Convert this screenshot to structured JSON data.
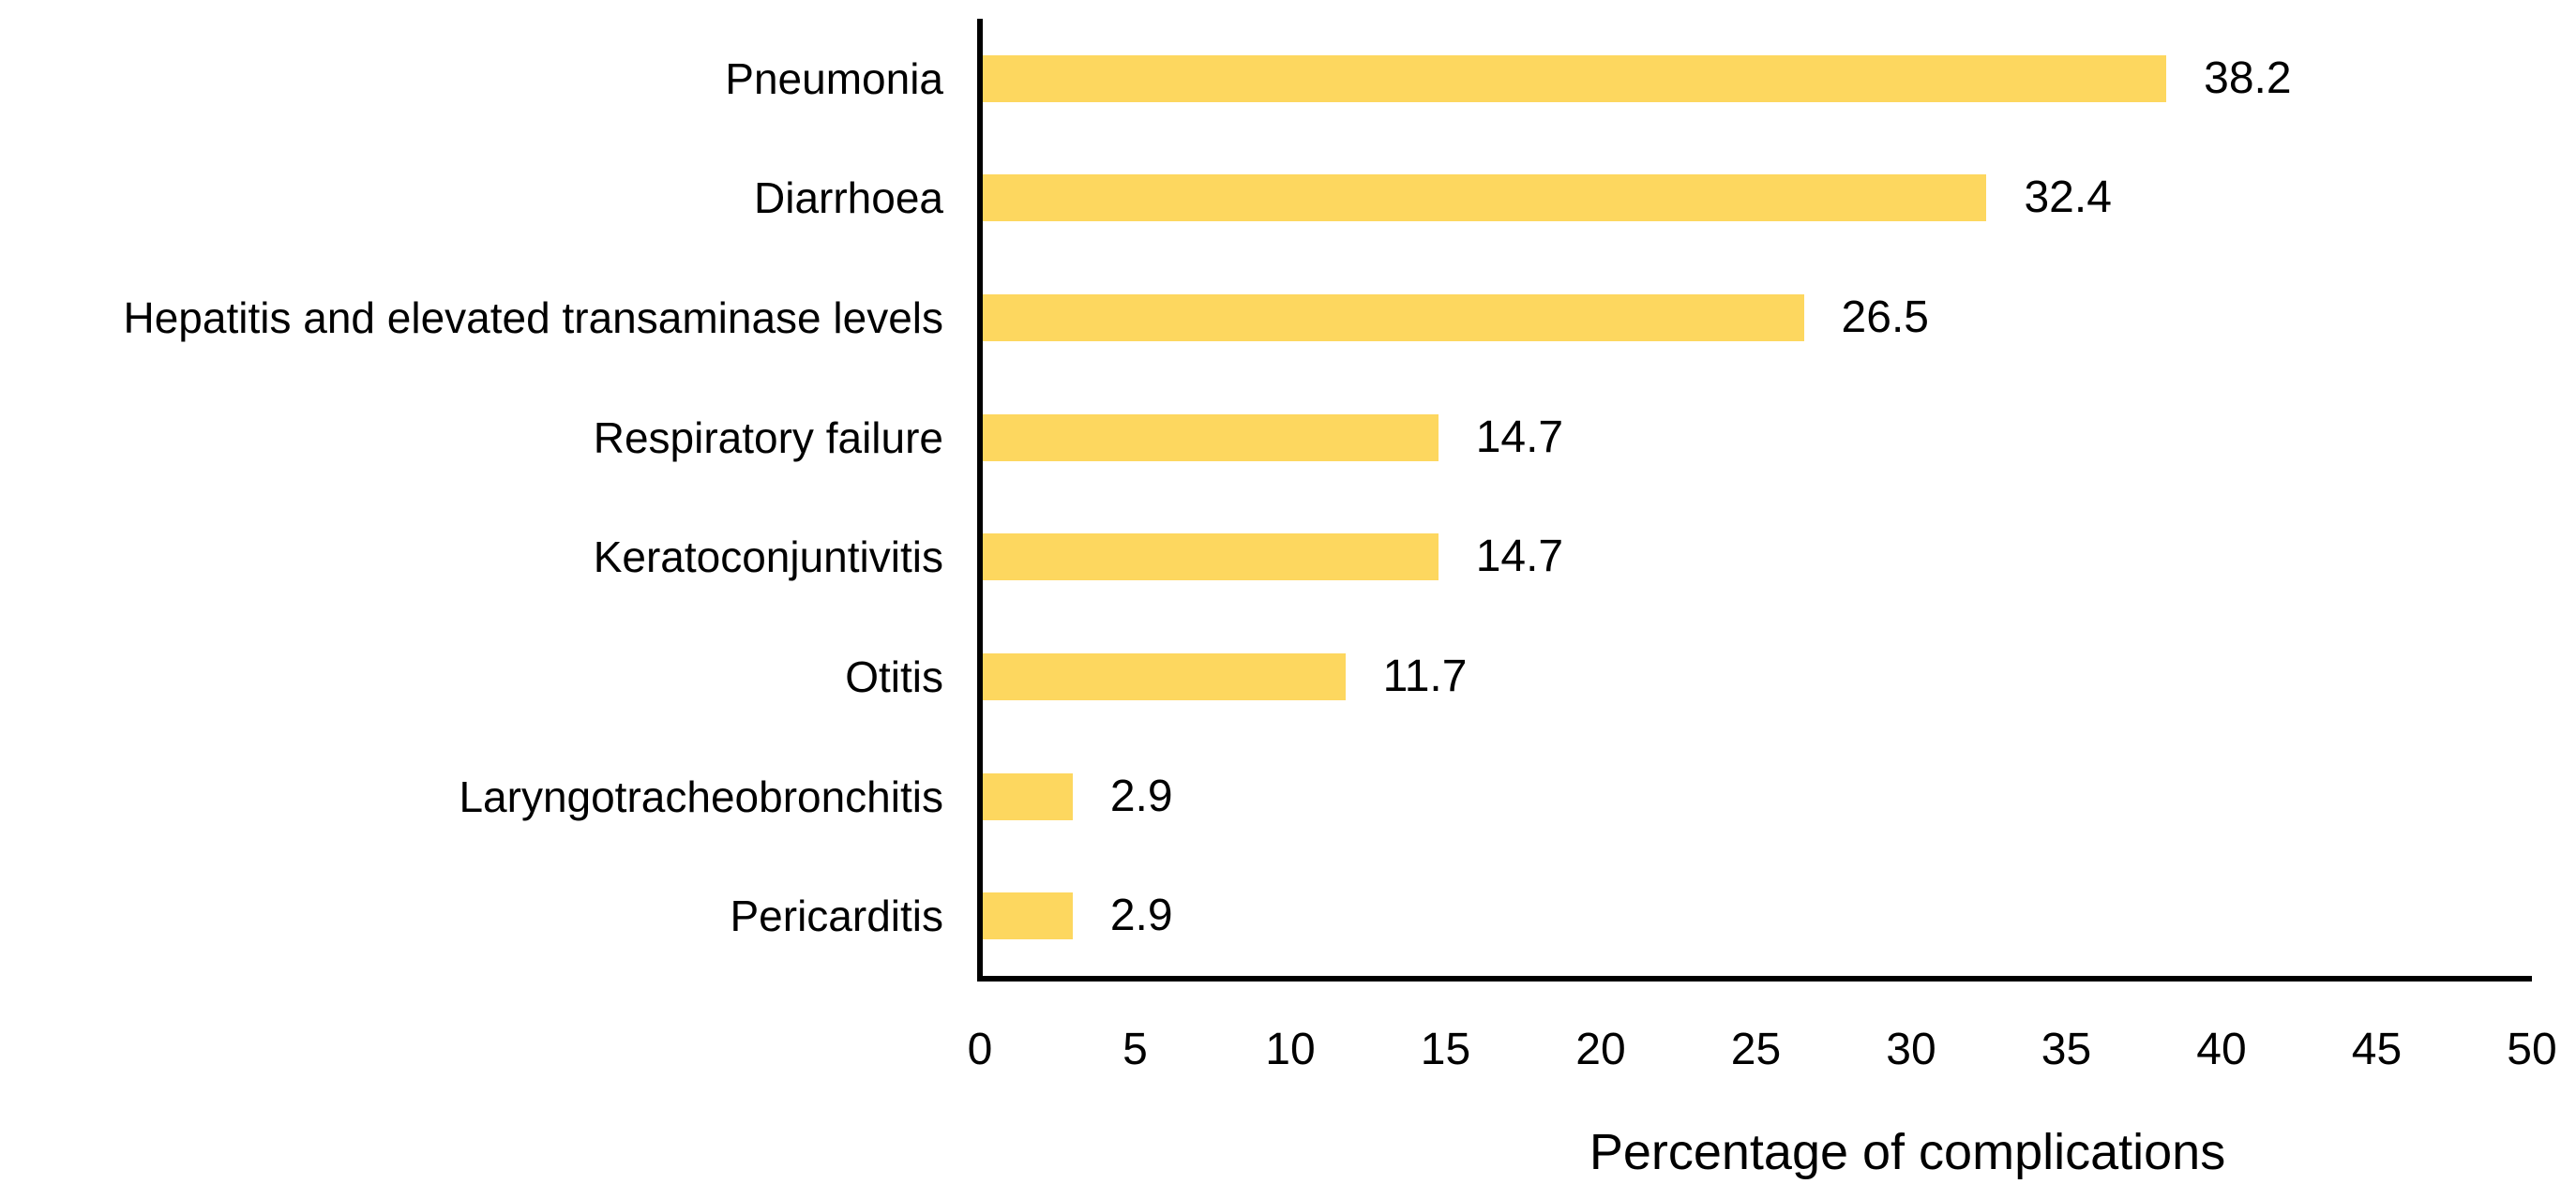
{
  "chart_data": {
    "type": "bar",
    "orientation": "horizontal",
    "title": "",
    "xlabel": "Percentage of complications",
    "ylabel": "",
    "categories": [
      "Pneumonia",
      "Diarrhoea",
      "Hepatitis and elevated transaminase levels",
      "Respiratory failure",
      "Keratoconjuntivitis",
      "Otitis",
      "Laryngotracheobronchitis",
      "Pericarditis"
    ],
    "values": [
      38.2,
      32.4,
      26.5,
      14.7,
      14.7,
      11.7,
      2.9,
      2.9
    ],
    "value_labels": [
      "38.2",
      "32.4",
      "26.5",
      "14.7",
      "14.7",
      "11.7",
      "2.9",
      "2.9"
    ],
    "xlim": [
      0,
      50
    ],
    "x_ticks": [
      0,
      5,
      10,
      15,
      20,
      25,
      30,
      35,
      40,
      45,
      50
    ],
    "grid": false,
    "legend": false,
    "data_labels_shown": true,
    "colors": {
      "bar": "#FDD75F",
      "axis": "#000000",
      "text": "#000000",
      "background": "#FFFFFF"
    }
  }
}
